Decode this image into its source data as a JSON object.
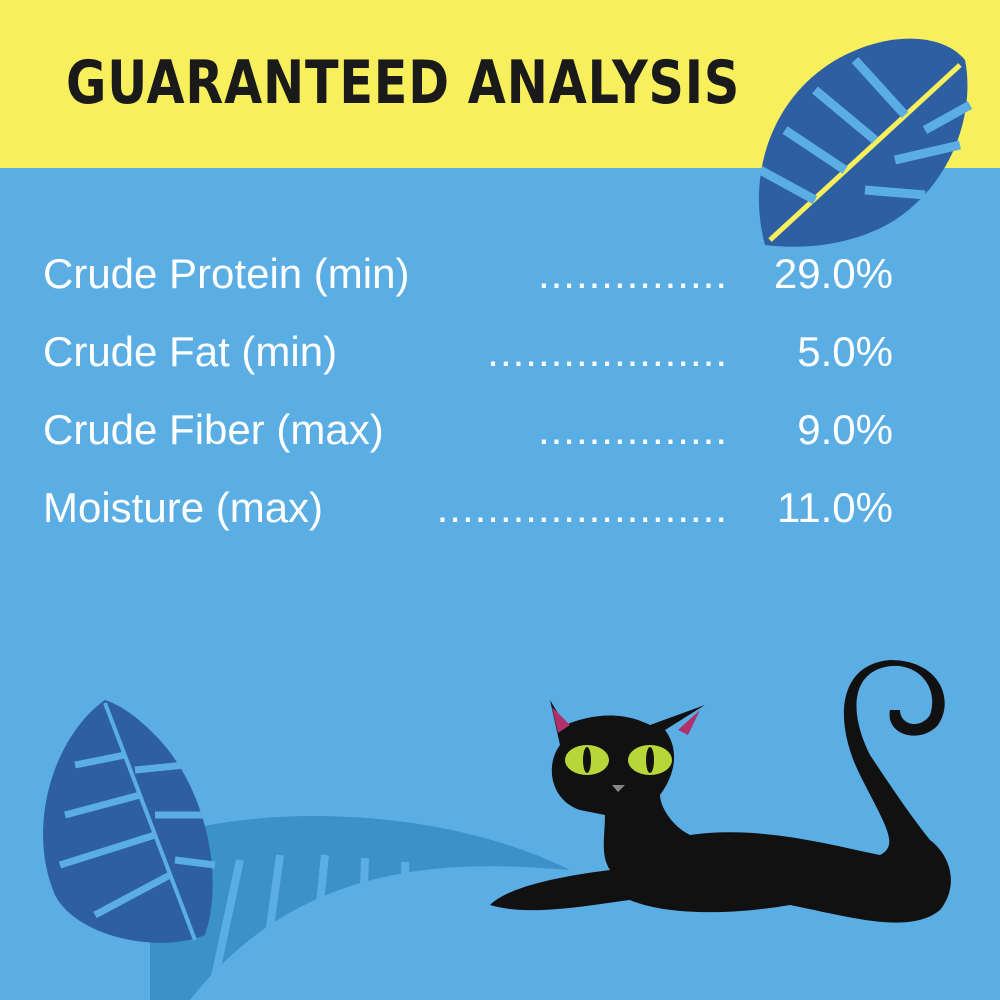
{
  "title": "GUARANTEED ANALYSIS",
  "analysis": [
    {
      "label": "Crude Protein (min)",
      "dots": "...............",
      "value": "29.0%"
    },
    {
      "label": "Crude Fat (min)",
      "dots": "...................",
      "value": "5.0%"
    },
    {
      "label": "Crude Fiber (max)",
      "dots": "...............",
      "value": "9.0%"
    },
    {
      "label": "Moisture (max)",
      "dots": ".......................",
      "value": "11.0%"
    }
  ],
  "colors": {
    "header": "#f7ef5c",
    "background": "#5aaee4",
    "leaf": "#2e5fa3",
    "text": "#ffffff"
  }
}
